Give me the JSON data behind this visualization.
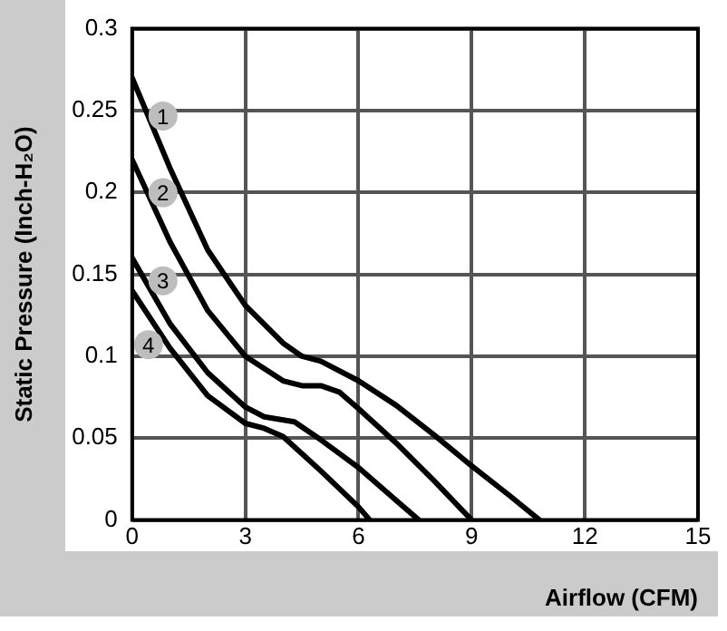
{
  "chart_data": {
    "type": "line",
    "xlabel": "Airflow (CFM)",
    "ylabel": "Static Pressure (Inch-H₂O)",
    "xlim": [
      0,
      15
    ],
    "xticks": [
      0,
      3,
      6,
      9,
      12,
      15
    ],
    "ylim": [
      0,
      0.3
    ],
    "yticks": [
      0,
      0.05,
      0.1,
      0.15,
      0.2,
      0.25,
      0.3
    ],
    "grid": true,
    "legend": false,
    "marker": "none",
    "line_style": "solid",
    "series": [
      {
        "name": "1",
        "color": "#000000",
        "x": [
          0,
          1,
          2,
          3,
          4,
          4.5,
          5,
          6,
          7,
          8,
          9,
          10,
          10.8
        ],
        "values": [
          0.27,
          0.215,
          0.165,
          0.131,
          0.108,
          0.1,
          0.097,
          0.085,
          0.07,
          0.052,
          0.033,
          0.015,
          0
        ]
      },
      {
        "name": "2",
        "color": "#000000",
        "x": [
          0,
          1,
          2,
          3,
          4,
          4.5,
          5,
          5.5,
          6,
          7,
          8,
          9
        ],
        "values": [
          0.22,
          0.17,
          0.128,
          0.1,
          0.085,
          0.082,
          0.082,
          0.078,
          0.068,
          0.047,
          0.024,
          0
        ]
      },
      {
        "name": "3",
        "color": "#000000",
        "x": [
          0,
          1,
          2,
          3,
          3.5,
          4.3,
          5,
          6,
          7,
          7.6
        ],
        "values": [
          0.16,
          0.12,
          0.09,
          0.069,
          0.063,
          0.06,
          0.049,
          0.032,
          0.012,
          0
        ]
      },
      {
        "name": "4",
        "color": "#000000",
        "x": [
          0,
          1,
          2,
          3,
          3.5,
          4,
          5,
          6,
          6.3
        ],
        "values": [
          0.14,
          0.105,
          0.076,
          0.059,
          0.056,
          0.051,
          0.03,
          0.008,
          0
        ]
      }
    ]
  }
}
